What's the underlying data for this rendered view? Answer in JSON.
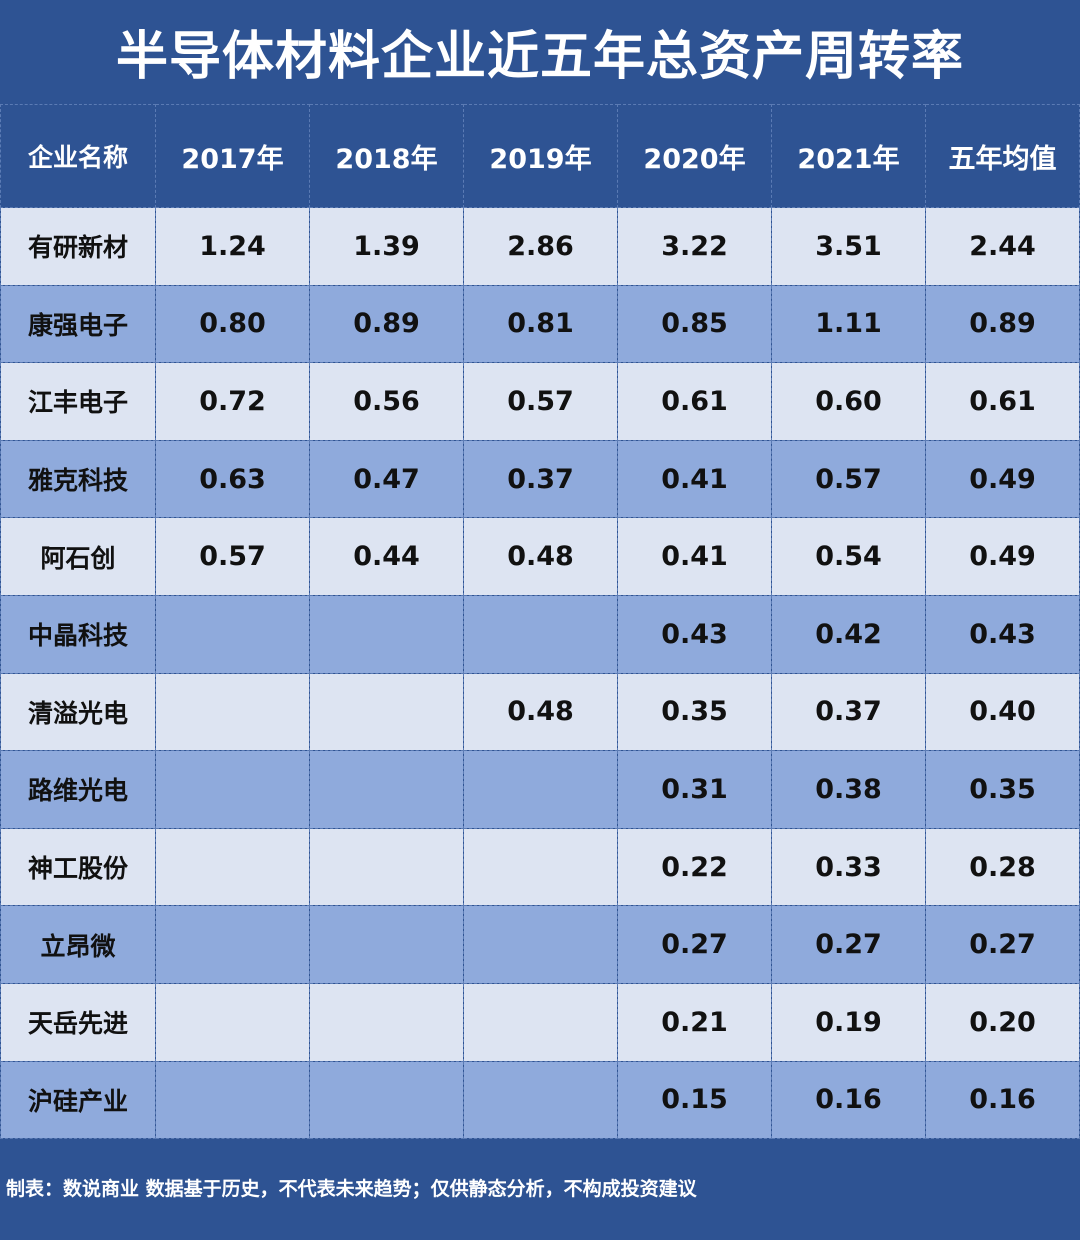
{
  "title": "半导体材料企业近五年总资产周转率",
  "table": {
    "headers": [
      "企业名称",
      "2017年",
      "2018年",
      "2019年",
      "2020年",
      "2021年",
      "五年均值"
    ],
    "rows": [
      [
        "有研新材",
        "1.24",
        "1.39",
        "2.86",
        "3.22",
        "3.51",
        "2.44"
      ],
      [
        "康强电子",
        "0.80",
        "0.89",
        "0.81",
        "0.85",
        "1.11",
        "0.89"
      ],
      [
        "江丰电子",
        "0.72",
        "0.56",
        "0.57",
        "0.61",
        "0.60",
        "0.61"
      ],
      [
        "雅克科技",
        "0.63",
        "0.47",
        "0.37",
        "0.41",
        "0.57",
        "0.49"
      ],
      [
        "阿石创",
        "0.57",
        "0.44",
        "0.48",
        "0.41",
        "0.54",
        "0.49"
      ],
      [
        "中晶科技",
        "",
        "",
        "",
        "0.43",
        "0.42",
        "0.43"
      ],
      [
        "清溢光电",
        "",
        "",
        "0.48",
        "0.35",
        "0.37",
        "0.40"
      ],
      [
        "路维光电",
        "",
        "",
        "",
        "0.31",
        "0.38",
        "0.35"
      ],
      [
        "神工股份",
        "",
        "",
        "",
        "0.22",
        "0.33",
        "0.28"
      ],
      [
        "立昂微",
        "",
        "",
        "",
        "0.27",
        "0.27",
        "0.27"
      ],
      [
        "天岳先进",
        "",
        "",
        "",
        "0.21",
        "0.19",
        "0.20"
      ],
      [
        "沪硅产业",
        "",
        "",
        "",
        "0.15",
        "0.16",
        "0.16"
      ]
    ]
  },
  "footer": "制表：数说商业 数据基于历史，不代表未来趋势；仅供静态分析，不构成投资建议",
  "colors": {
    "background": "#2e5393",
    "row_light": "#dde4f2",
    "row_dark": "#8faadc",
    "border": "#5b7bb4"
  }
}
